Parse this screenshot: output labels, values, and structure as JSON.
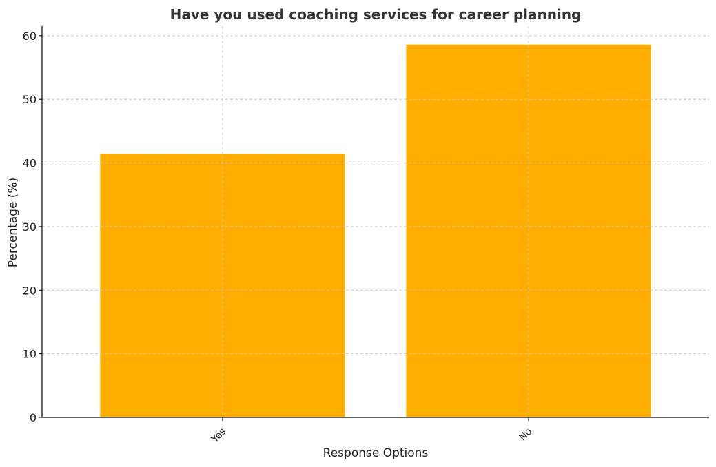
{
  "chart_data": {
    "type": "bar",
    "title": "Have you used coaching services for career planning",
    "xlabel": "Response Options",
    "ylabel": "Percentage (%)",
    "categories": [
      "Yes",
      "No"
    ],
    "values": [
      41.4,
      58.6
    ],
    "ylim": [
      0,
      61.5
    ],
    "yticks": [
      0,
      10,
      20,
      30,
      40,
      50,
      60
    ],
    "bar_color": "#ffae00",
    "grid": true,
    "legend": "none"
  }
}
